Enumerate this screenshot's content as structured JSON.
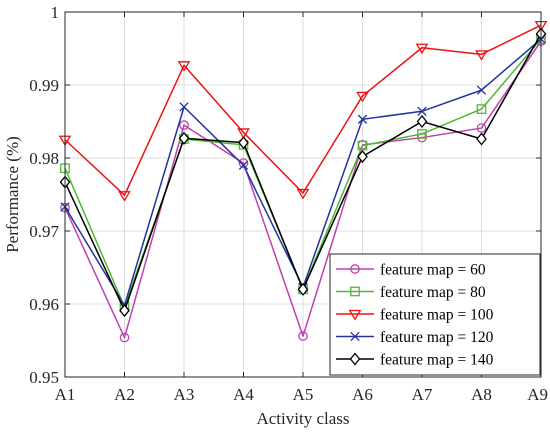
{
  "chart_data": {
    "type": "line",
    "xlabel": "Activity class",
    "ylabel": "Performance (%)",
    "categories": [
      "A1",
      "A2",
      "A3",
      "A4",
      "A5",
      "A6",
      "A7",
      "A8",
      "A9"
    ],
    "ylim": [
      0.95,
      1.0
    ],
    "yticks": [
      0.95,
      0.96,
      0.97,
      0.98,
      0.99,
      1
    ],
    "ytick_labels": [
      "0.95",
      "0.96",
      "0.97",
      "0.98",
      "0.99",
      "1"
    ],
    "grid": true,
    "legend_position": "bottom-right",
    "series": [
      {
        "name": "feature map = 60",
        "color": "#c040b0",
        "marker": "circle",
        "values": [
          0.9732,
          0.9554,
          0.9845,
          0.9793,
          0.9556,
          0.9818,
          0.9828,
          0.9841,
          0.996
        ]
      },
      {
        "name": "feature map = 80",
        "color": "#50b830",
        "marker": "square",
        "values": [
          0.9786,
          0.9596,
          0.9826,
          0.9818,
          0.962,
          0.9817,
          0.9833,
          0.9867,
          0.9963
        ]
      },
      {
        "name": "feature map = 100",
        "color": "#ee1111",
        "marker": "triangle-down",
        "values": [
          0.9825,
          0.9749,
          0.9927,
          0.9835,
          0.9752,
          0.9885,
          0.9951,
          0.9942,
          0.9982
        ]
      },
      {
        "name": "feature map = 120",
        "color": "#2233a0",
        "marker": "x",
        "values": [
          0.9733,
          0.9598,
          0.987,
          0.979,
          0.9623,
          0.9853,
          0.9864,
          0.9893,
          0.9963
        ]
      },
      {
        "name": "feature map = 140",
        "color": "#000000",
        "marker": "diamond",
        "values": [
          0.9767,
          0.9591,
          0.9827,
          0.9821,
          0.962,
          0.9802,
          0.985,
          0.9826,
          0.997
        ]
      }
    ]
  }
}
